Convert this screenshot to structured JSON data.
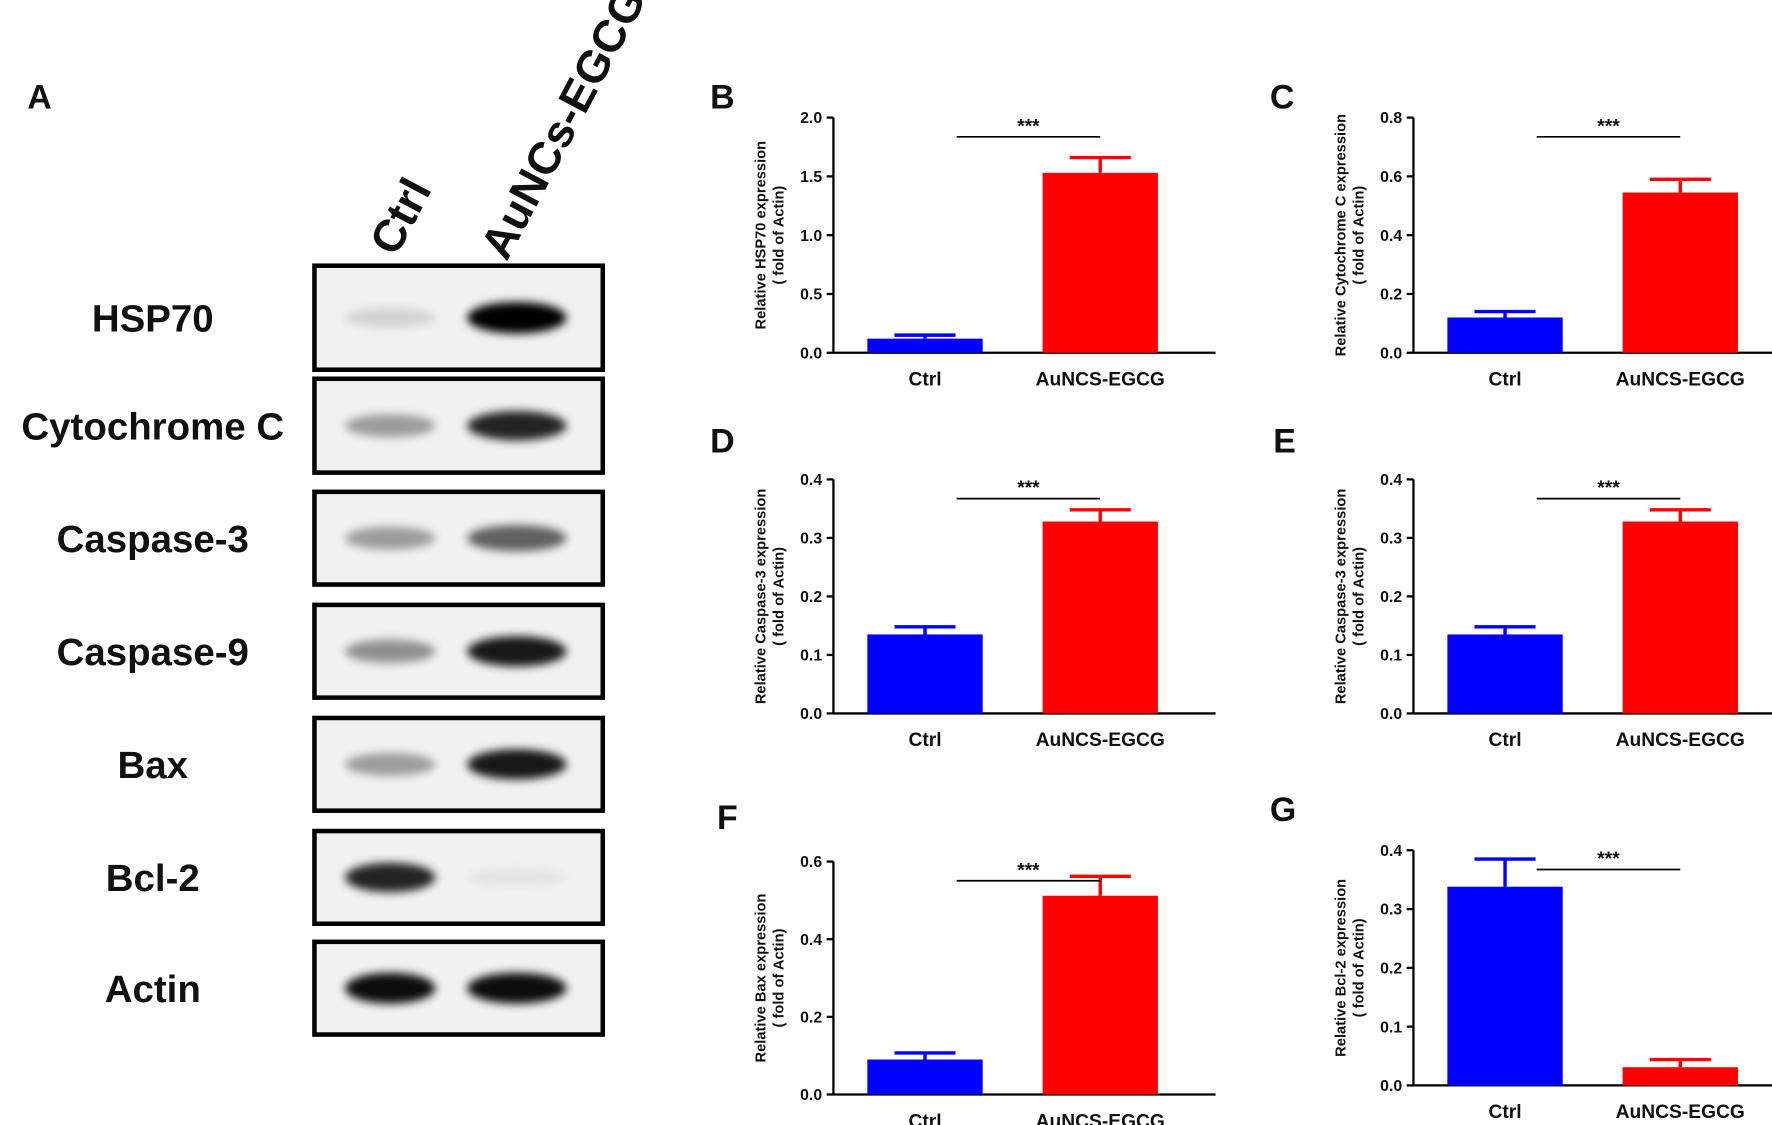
{
  "blot": {
    "label": "A",
    "lanes": [
      "Ctrl",
      "AuNCs-EGCG"
    ],
    "rows": [
      "HSP70",
      "Cytochrome C",
      "Caspase-3",
      "Caspase-9",
      "Bax",
      "Bcl-2",
      "Actin"
    ]
  },
  "chart_data": [
    {
      "type": "bar",
      "label": "B",
      "ylabel": "Relative HSP70 expression",
      "ylabel_note": "( fold of Actin)",
      "categories": [
        "Ctrl",
        "AuNCS-EGCG"
      ],
      "values": [
        0.12,
        1.53
      ],
      "errors": [
        0.03,
        0.13
      ],
      "colors": [
        "#0000ff",
        "#ff0000"
      ],
      "annotation": "***",
      "ylim": [
        0,
        2
      ],
      "yticks": [
        {
          "value": 0,
          "label": "0.0"
        },
        0.5,
        {
          "value": 1,
          "label": "1.0"
        },
        1.5,
        {
          "value": 2,
          "label": "2.0"
        }
      ]
    },
    {
      "type": "bar",
      "label": "C",
      "ylabel": "Relative Cytochrome C expression",
      "ylabel_note": "( fold of Actin)",
      "categories": [
        "Ctrl",
        "AuNCS-EGCG"
      ],
      "values": [
        0.12,
        0.545
      ],
      "errors": [
        0.02,
        0.045
      ],
      "colors": [
        "#0000ff",
        "#ff0000"
      ],
      "annotation": "***",
      "ylim": [
        0,
        0.8
      ],
      "yticks": [
        {
          "value": 0,
          "label": "0.0"
        },
        0.2,
        0.4,
        0.6,
        0.8
      ]
    },
    {
      "type": "bar",
      "label": "D",
      "ylabel": "Relative Caspase-3 expression",
      "ylabel_note": "( fold of Actin)",
      "categories": [
        "Ctrl",
        "AuNCS-EGCG"
      ],
      "values": [
        0.135,
        0.328
      ],
      "errors": [
        0.013,
        0.02
      ],
      "colors": [
        "#0000ff",
        "#ff0000"
      ],
      "annotation": "***",
      "ylim": [
        0,
        0.4
      ],
      "yticks": [
        {
          "value": 0,
          "label": "0.0"
        },
        0.1,
        0.2,
        0.3,
        0.4
      ]
    },
    {
      "type": "bar",
      "label": "E",
      "ylabel": "Relative Caspase-3 expression",
      "ylabel_note": "( fold of Actin)",
      "categories": [
        "Ctrl",
        "AuNCS-EGCG"
      ],
      "values": [
        0.135,
        0.328
      ],
      "errors": [
        0.013,
        0.02
      ],
      "colors": [
        "#0000ff",
        "#ff0000"
      ],
      "annotation": "***",
      "ylim": [
        0,
        0.4
      ],
      "yticks": [
        {
          "value": 0,
          "label": "0.0"
        },
        0.1,
        0.2,
        0.3,
        0.4
      ]
    },
    {
      "type": "bar",
      "label": "F",
      "ylabel": "Relative Bax expression",
      "ylabel_note": "( fold of Actin)",
      "categories": [
        "Ctrl",
        "AuNCS-EGCG"
      ],
      "values": [
        0.09,
        0.512
      ],
      "errors": [
        0.017,
        0.05
      ],
      "colors": [
        "#0000ff",
        "#ff0000"
      ],
      "annotation": "***",
      "ylim": [
        0,
        0.6
      ],
      "yticks": [
        {
          "value": 0,
          "label": "0.0"
        },
        0.2,
        0.4,
        0.6
      ]
    },
    {
      "type": "bar",
      "label": "G",
      "ylabel": "Relative Bcl-2 expression",
      "ylabel_note": "( fold of Actin)",
      "categories": [
        "Ctrl",
        "AuNCS-EGCG"
      ],
      "values": [
        0.338,
        0.031
      ],
      "errors": [
        0.047,
        0.013
      ],
      "colors": [
        "#0000ff",
        "#ff0000"
      ],
      "annotation": "***",
      "ylim": [
        0,
        0.4
      ],
      "yticks": [
        {
          "value": 0,
          "label": "0.0"
        },
        0.1,
        0.2,
        0.3,
        0.4
      ]
    }
  ]
}
